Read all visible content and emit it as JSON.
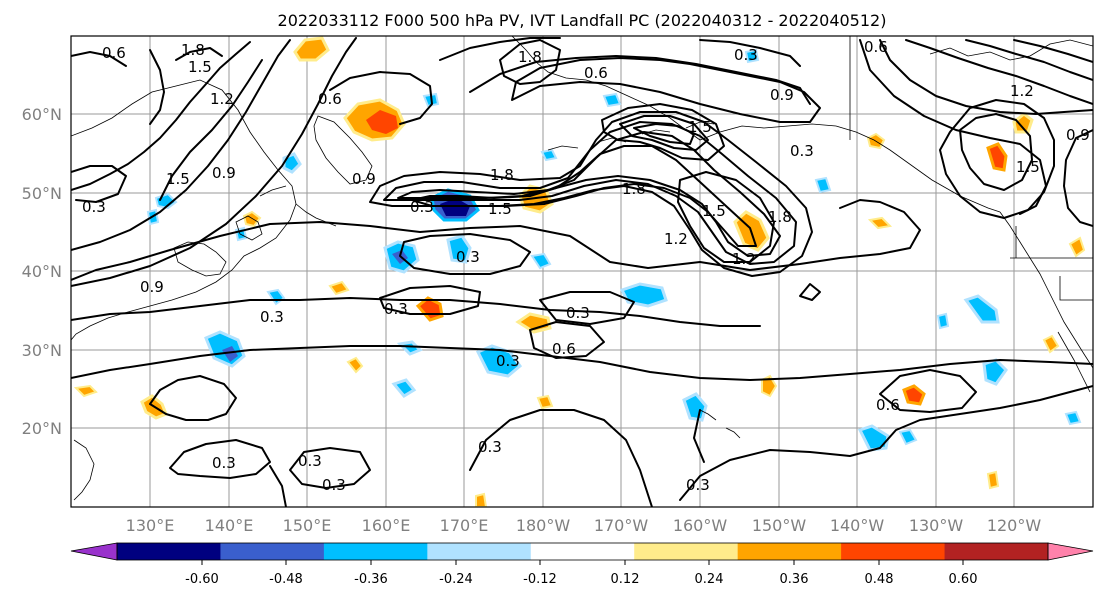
{
  "title": "2022033112 F000 500 hPa PV, IVT Landfall PC (2022040312 - 2022040512)",
  "latitudes": [
    "20°N",
    "30°N",
    "40°N",
    "50°N",
    "60°N"
  ],
  "longitudes": [
    "130°E",
    "140°E",
    "150°E",
    "160°E",
    "170°E",
    "180°W",
    "170°W",
    "160°W",
    "150°W",
    "140°W",
    "130°W",
    "120°W"
  ],
  "colorbar": {
    "colors": [
      "#9932cc",
      "#000080",
      "#3a5fcd",
      "#00bfff",
      "#b0e2ff",
      "#ffffff",
      "#ffec8b",
      "#ffa500",
      "#ff4500",
      "#b22222",
      "#ff82ab"
    ],
    "tick_labels": [
      "-0.60",
      "-0.48",
      "-0.36",
      "-0.24",
      "-0.12",
      "0.12",
      "0.24",
      "0.36",
      "0.48",
      "0.60"
    ]
  },
  "contour_labels": [
    "0.6",
    "1.8",
    "1.5",
    "0.6",
    "0.3",
    "1.5",
    "1.8",
    "0.6",
    "0.3",
    "0.6",
    "0.9",
    "1.2",
    "0.3",
    "1.5",
    "0.9",
    "0.9",
    "0.3",
    "1.5",
    "1.8",
    "1.8",
    "1.5",
    "1.2",
    "1.2",
    "1.8",
    "0.9",
    "0.3",
    "0.3",
    "0.3",
    "0.3",
    "0.3",
    "0.6",
    "0.3",
    "0.3",
    "0.3",
    "0.3",
    "0.6",
    "0.3",
    "1.5",
    "1.2",
    "0.9"
  ],
  "colors": {
    "axes_frame": "#000000",
    "gridlines": "#9a9a9a",
    "contour_lines": "#000000",
    "axis_tick_labels": "#808080"
  }
}
